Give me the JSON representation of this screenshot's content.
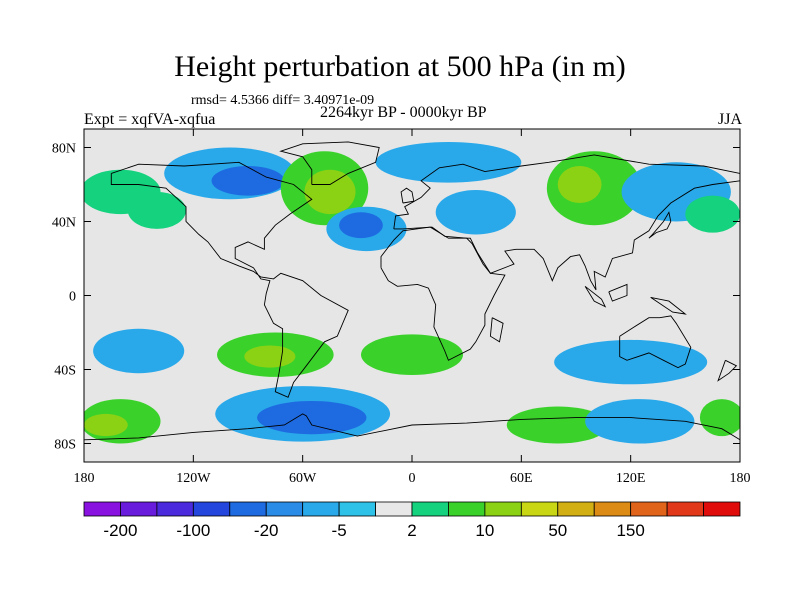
{
  "title": "Height perturbation at 500 hPa (in m)",
  "stats": "rmsd= 4.5366 diff= 3.40971e-09",
  "experiment": "Expt = xqfVA-xqfua",
  "period": "2264kyr BP - 0000kyr BP",
  "season": "JJA",
  "map": {
    "projection": "cylindrical-equidistant",
    "lon_range": [
      -180,
      180
    ],
    "lat_range": [
      -90,
      90
    ],
    "x_ticks": [
      {
        "lon": -180,
        "label": "180"
      },
      {
        "lon": -120,
        "label": "120W"
      },
      {
        "lon": -60,
        "label": "60W"
      },
      {
        "lon": 0,
        "label": "0"
      },
      {
        "lon": 60,
        "label": "60E"
      },
      {
        "lon": 120,
        "label": "120E"
      },
      {
        "lon": 180,
        "label": "180"
      }
    ],
    "y_ticks": [
      {
        "lat": 80,
        "label": "80N"
      },
      {
        "lat": 40,
        "label": "40N"
      },
      {
        "lat": 0,
        "label": "0"
      },
      {
        "lat": -40,
        "label": "40S"
      },
      {
        "lat": -80,
        "label": "80S"
      }
    ],
    "background_color": "#e6e6e6",
    "coastline_color": "#000000"
  },
  "colorbar": {
    "colors": [
      "#8a12e0",
      "#6a1cdc",
      "#4a2adc",
      "#2446dc",
      "#1e6ae0",
      "#2a8ce6",
      "#29a8ea",
      "#2ec2e8",
      "#e8e8e8",
      "#14d27e",
      "#3ad22a",
      "#8cd214",
      "#c8d614",
      "#d2b014",
      "#dc8c14",
      "#e0641a",
      "#e03818",
      "#e00c0c"
    ],
    "labels": [
      {
        "index": 1,
        "text": "-200"
      },
      {
        "index": 3,
        "text": "-100"
      },
      {
        "index": 5,
        "text": "-20"
      },
      {
        "index": 7,
        "text": "-5"
      },
      {
        "index": 9,
        "text": "2"
      },
      {
        "index": 11,
        "text": "10"
      },
      {
        "index": 13,
        "text": "50"
      },
      {
        "index": 15,
        "text": "150"
      }
    ]
  },
  "field": [
    {
      "lon": -100,
      "lat": 66,
      "rx": 36,
      "ry": 14,
      "color": "#29a8ea"
    },
    {
      "lon": -90,
      "lat": 62,
      "rx": 20,
      "ry": 8,
      "color": "#1e6ae0"
    },
    {
      "lon": -48,
      "lat": 58,
      "rx": 24,
      "ry": 20,
      "color": "#3ad22a"
    },
    {
      "lon": -45,
      "lat": 56,
      "rx": 14,
      "ry": 12,
      "color": "#8cd214"
    },
    {
      "lon": -25,
      "lat": 36,
      "rx": 22,
      "ry": 12,
      "color": "#29a8ea"
    },
    {
      "lon": -28,
      "lat": 38,
      "rx": 12,
      "ry": 7,
      "color": "#1e6ae0"
    },
    {
      "lon": 20,
      "lat": 72,
      "rx": 40,
      "ry": 11,
      "color": "#29a8ea"
    },
    {
      "lon": 35,
      "lat": 45,
      "rx": 22,
      "ry": 12,
      "color": "#29a8ea"
    },
    {
      "lon": 100,
      "lat": 58,
      "rx": 26,
      "ry": 20,
      "color": "#3ad22a"
    },
    {
      "lon": 92,
      "lat": 60,
      "rx": 12,
      "ry": 10,
      "color": "#8cd214"
    },
    {
      "lon": 145,
      "lat": 56,
      "rx": 30,
      "ry": 16,
      "color": "#29a8ea"
    },
    {
      "lon": 165,
      "lat": 44,
      "rx": 15,
      "ry": 10,
      "color": "#14d27e"
    },
    {
      "lon": -160,
      "lat": 56,
      "rx": 22,
      "ry": 12,
      "color": "#14d27e"
    },
    {
      "lon": -140,
      "lat": 46,
      "rx": 16,
      "ry": 10,
      "color": "#14d27e"
    },
    {
      "lon": -150,
      "lat": -30,
      "rx": 25,
      "ry": 12,
      "color": "#29a8ea"
    },
    {
      "lon": -75,
      "lat": -32,
      "rx": 32,
      "ry": 12,
      "color": "#3ad22a"
    },
    {
      "lon": -78,
      "lat": -33,
      "rx": 14,
      "ry": 6,
      "color": "#8cd214"
    },
    {
      "lon": 0,
      "lat": -32,
      "rx": 28,
      "ry": 11,
      "color": "#3ad22a"
    },
    {
      "lon": 120,
      "lat": -36,
      "rx": 42,
      "ry": 12,
      "color": "#29a8ea"
    },
    {
      "lon": -160,
      "lat": -68,
      "rx": 22,
      "ry": 12,
      "color": "#3ad22a"
    },
    {
      "lon": -168,
      "lat": -70,
      "rx": 12,
      "ry": 6,
      "color": "#8cd214"
    },
    {
      "lon": -60,
      "lat": -64,
      "rx": 48,
      "ry": 15,
      "color": "#29a8ea"
    },
    {
      "lon": -55,
      "lat": -66,
      "rx": 30,
      "ry": 9,
      "color": "#1e6ae0"
    },
    {
      "lon": 80,
      "lat": -70,
      "rx": 28,
      "ry": 10,
      "color": "#3ad22a"
    },
    {
      "lon": 125,
      "lat": -68,
      "rx": 30,
      "ry": 12,
      "color": "#29a8ea"
    },
    {
      "lon": 170,
      "lat": -66,
      "rx": 12,
      "ry": 10,
      "color": "#3ad22a"
    }
  ]
}
